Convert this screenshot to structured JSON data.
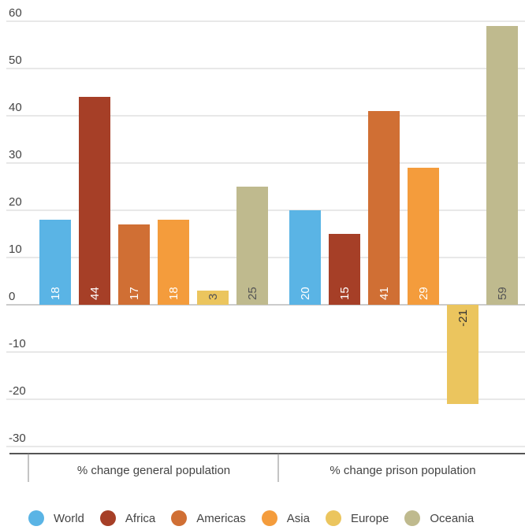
{
  "chart_data": {
    "type": "bar",
    "groups": [
      "% change general population",
      "% change prison population"
    ],
    "series": [
      {
        "name": "World",
        "color": "#5ab4e5",
        "values": [
          18,
          20
        ]
      },
      {
        "name": "Africa",
        "color": "#a63f27",
        "values": [
          44,
          15
        ]
      },
      {
        "name": "Americas",
        "color": "#d06f34",
        "values": [
          17,
          41
        ]
      },
      {
        "name": "Asia",
        "color": "#f49c3c",
        "values": [
          18,
          29
        ]
      },
      {
        "name": "Europe",
        "color": "#ebc55e",
        "values": [
          3,
          -21
        ]
      },
      {
        "name": "Oceania",
        "color": "#bfba8e",
        "values": [
          25,
          59
        ]
      }
    ],
    "data_labels": [
      [
        "18",
        "44",
        "17",
        "18",
        "3",
        "25"
      ],
      [
        "20",
        "15",
        "41",
        "29",
        "-21",
        "59"
      ]
    ],
    "y_ticks": [
      "60",
      "50",
      "40",
      "30",
      "20",
      "10",
      "0",
      "-10",
      "-20",
      "-30"
    ],
    "ylim": [
      -30,
      60
    ],
    "grid": true,
    "legend_position": "bottom"
  }
}
